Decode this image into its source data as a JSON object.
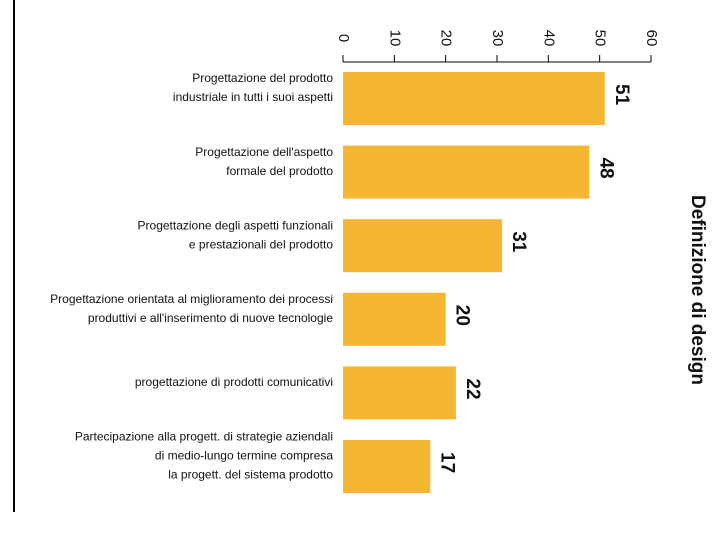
{
  "chart_data": {
    "type": "bar",
    "title": "Definizione di design",
    "categories": [
      [
        "Progettazione del prodotto",
        "industriale in tutti i suoi aspetti"
      ],
      [
        "Progettazione dell'aspetto",
        "formale del prodotto"
      ],
      [
        "Progettazione degli aspetti funzionali",
        "e prestazionali del prodotto"
      ],
      [
        "Progettazione orientata al miglioramento dei processi",
        "produttivi e all'inserimento di nuove tecnologie"
      ],
      [
        "progettazione di prodotti comunicativi"
      ],
      [
        "Partecipazione alla progett. di strategie aziendali",
        "di medio-lungo termine compresa",
        "la progett. del sistema prodotto"
      ]
    ],
    "values": [
      51,
      48,
      31,
      20,
      22,
      17
    ],
    "color": "#f5b731",
    "xlim": [
      0,
      60
    ],
    "xticks": [
      0,
      10,
      20,
      30,
      40,
      50,
      60
    ]
  }
}
